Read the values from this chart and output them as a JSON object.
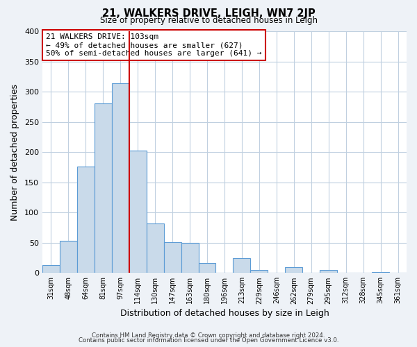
{
  "title": "21, WALKERS DRIVE, LEIGH, WN7 2JP",
  "subtitle": "Size of property relative to detached houses in Leigh",
  "xlabel": "Distribution of detached houses by size in Leigh",
  "ylabel": "Number of detached properties",
  "footnote1": "Contains HM Land Registry data © Crown copyright and database right 2024.",
  "footnote2": "Contains public sector information licensed under the Open Government Licence v3.0.",
  "bar_labels": [
    "31sqm",
    "48sqm",
    "64sqm",
    "81sqm",
    "97sqm",
    "114sqm",
    "130sqm",
    "147sqm",
    "163sqm",
    "180sqm",
    "196sqm",
    "213sqm",
    "229sqm",
    "246sqm",
    "262sqm",
    "279sqm",
    "295sqm",
    "312sqm",
    "328sqm",
    "345sqm",
    "361sqm"
  ],
  "bar_values": [
    13,
    53,
    176,
    280,
    314,
    203,
    82,
    51,
    50,
    16,
    0,
    25,
    5,
    0,
    9,
    0,
    5,
    0,
    0,
    1,
    0
  ],
  "bar_color": "#c9daea",
  "bar_edge_color": "#5b9bd5",
  "ylim": [
    0,
    400
  ],
  "yticks": [
    0,
    50,
    100,
    150,
    200,
    250,
    300,
    350,
    400
  ],
  "vline_x": 4.5,
  "vline_color": "#cc0000",
  "annotation_title": "21 WALKERS DRIVE: 103sqm",
  "annotation_line1": "← 49% of detached houses are smaller (627)",
  "annotation_line2": "50% of semi-detached houses are larger (641) →",
  "background_color": "#eef2f7",
  "plot_bg_color": "#ffffff",
  "grid_color": "#c0d0e0"
}
